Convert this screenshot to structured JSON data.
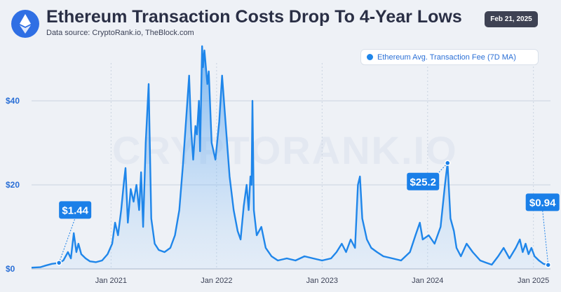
{
  "header": {
    "title": "Ethereum Transaction Costs Drop To 4-Year Lows",
    "subtitle": "Data source: CryptoRank.io, TheBlock.com",
    "date": "Feb 21, 2025",
    "logo_icon": "ethereum-icon",
    "watermark": "CRYPTORANK.IO"
  },
  "colors": {
    "line": "#1f86ea",
    "area": "#a9d2fb",
    "grid": "#c9d3e0",
    "accent": "#1a7fe8"
  },
  "chart_data": {
    "type": "area",
    "x_start": "2020-04-01",
    "series": [
      {
        "name": "Ethereum Avg. Transaction Fee (7D MA)",
        "points": [
          [
            "2020-04-01",
            0.3
          ],
          [
            "2020-05-01",
            0.4
          ],
          [
            "2020-05-20",
            0.8
          ],
          [
            "2020-06-10",
            1.2
          ],
          [
            "2020-07-05",
            1.44
          ],
          [
            "2020-07-20",
            2.0
          ],
          [
            "2020-08-05",
            4.0
          ],
          [
            "2020-08-15",
            2.5
          ],
          [
            "2020-08-25",
            8.5
          ],
          [
            "2020-09-03",
            4.0
          ],
          [
            "2020-09-10",
            6.0
          ],
          [
            "2020-09-20",
            3.5
          ],
          [
            "2020-10-05",
            2.5
          ],
          [
            "2020-10-20",
            1.8
          ],
          [
            "2020-11-10",
            1.6
          ],
          [
            "2020-12-01",
            2.0
          ],
          [
            "2020-12-20",
            3.5
          ],
          [
            "2021-01-05",
            6.0
          ],
          [
            "2021-01-15",
            11.0
          ],
          [
            "2021-01-25",
            8.0
          ],
          [
            "2021-02-05",
            14.0
          ],
          [
            "2021-02-15",
            21.0
          ],
          [
            "2021-02-20",
            24.0
          ],
          [
            "2021-02-28",
            11.0
          ],
          [
            "2021-03-10",
            19.0
          ],
          [
            "2021-03-20",
            16.0
          ],
          [
            "2021-03-30",
            20.0
          ],
          [
            "2021-04-08",
            14.0
          ],
          [
            "2021-04-15",
            23.0
          ],
          [
            "2021-04-22",
            10.0
          ],
          [
            "2021-05-01",
            30.0
          ],
          [
            "2021-05-11",
            44.0
          ],
          [
            "2021-05-20",
            12.0
          ],
          [
            "2021-06-01",
            6.0
          ],
          [
            "2021-06-15",
            4.5
          ],
          [
            "2021-07-05",
            4.0
          ],
          [
            "2021-07-25",
            5.0
          ],
          [
            "2021-08-10",
            8.0
          ],
          [
            "2021-08-25",
            14.0
          ],
          [
            "2021-09-07",
            25.0
          ],
          [
            "2021-09-20",
            38.0
          ],
          [
            "2021-09-28",
            46.0
          ],
          [
            "2021-10-05",
            33.0
          ],
          [
            "2021-10-12",
            26.0
          ],
          [
            "2021-10-20",
            34.0
          ],
          [
            "2021-10-25",
            32.0
          ],
          [
            "2021-11-01",
            40.0
          ],
          [
            "2021-11-05",
            28.0
          ],
          [
            "2021-11-12",
            53.0
          ],
          [
            "2021-11-15",
            48.0
          ],
          [
            "2021-11-20",
            52.0
          ],
          [
            "2021-11-30",
            44.0
          ],
          [
            "2021-12-05",
            47.0
          ],
          [
            "2021-12-15",
            30.0
          ],
          [
            "2021-12-28",
            26.0
          ],
          [
            "2022-01-10",
            35.0
          ],
          [
            "2022-01-20",
            46.0
          ],
          [
            "2022-02-01",
            35.0
          ],
          [
            "2022-02-15",
            22.0
          ],
          [
            "2022-03-01",
            14.0
          ],
          [
            "2022-03-15",
            9.0
          ],
          [
            "2022-03-25",
            7.0
          ],
          [
            "2022-04-05",
            15.0
          ],
          [
            "2022-04-15",
            20.0
          ],
          [
            "2022-04-22",
            14.0
          ],
          [
            "2022-04-28",
            22.0
          ],
          [
            "2022-05-02",
            20.0
          ],
          [
            "2022-05-05",
            40.0
          ],
          [
            "2022-05-10",
            14.0
          ],
          [
            "2022-05-20",
            8.0
          ],
          [
            "2022-06-05",
            10.0
          ],
          [
            "2022-06-20",
            5.0
          ],
          [
            "2022-07-10",
            3.0
          ],
          [
            "2022-08-01",
            2.0
          ],
          [
            "2022-09-01",
            2.5
          ],
          [
            "2022-10-01",
            2.0
          ],
          [
            "2022-11-01",
            3.0
          ],
          [
            "2022-12-01",
            2.5
          ],
          [
            "2023-01-01",
            2.0
          ],
          [
            "2023-02-01",
            2.5
          ],
          [
            "2023-02-20",
            4.0
          ],
          [
            "2023-03-10",
            6.0
          ],
          [
            "2023-03-25",
            4.0
          ],
          [
            "2023-04-10",
            7.0
          ],
          [
            "2023-04-25",
            5.0
          ],
          [
            "2023-05-05",
            20.0
          ],
          [
            "2023-05-12",
            22.0
          ],
          [
            "2023-05-20",
            12.0
          ],
          [
            "2023-06-05",
            7.0
          ],
          [
            "2023-06-20",
            5.0
          ],
          [
            "2023-07-10",
            4.0
          ],
          [
            "2023-08-01",
            3.0
          ],
          [
            "2023-09-01",
            2.5
          ],
          [
            "2023-10-01",
            2.0
          ],
          [
            "2023-11-01",
            4.0
          ],
          [
            "2023-11-20",
            8.0
          ],
          [
            "2023-12-05",
            11.0
          ],
          [
            "2023-12-15",
            7.0
          ],
          [
            "2024-01-05",
            8.0
          ],
          [
            "2024-01-25",
            6.0
          ],
          [
            "2024-02-15",
            10.0
          ],
          [
            "2024-03-01",
            20.0
          ],
          [
            "2024-03-10",
            25.2
          ],
          [
            "2024-03-20",
            12.0
          ],
          [
            "2024-04-01",
            9.0
          ],
          [
            "2024-04-10",
            5.0
          ],
          [
            "2024-04-25",
            3.0
          ],
          [
            "2024-05-15",
            6.0
          ],
          [
            "2024-06-05",
            4.0
          ],
          [
            "2024-07-01",
            2.0
          ],
          [
            "2024-07-20",
            1.5
          ],
          [
            "2024-08-10",
            1.0
          ],
          [
            "2024-09-01",
            3.0
          ],
          [
            "2024-09-20",
            5.0
          ],
          [
            "2024-10-10",
            2.5
          ],
          [
            "2024-11-01",
            5.0
          ],
          [
            "2024-11-15",
            7.0
          ],
          [
            "2024-11-25",
            4.0
          ],
          [
            "2024-12-05",
            6.0
          ],
          [
            "2024-12-15",
            3.5
          ],
          [
            "2024-12-25",
            5.0
          ],
          [
            "2025-01-05",
            3.0
          ],
          [
            "2025-01-20",
            2.0
          ],
          [
            "2025-02-05",
            1.2
          ],
          [
            "2025-02-21",
            0.94
          ]
        ]
      }
    ],
    "yticks": [
      "$0",
      "$20",
      "$40"
    ],
    "ytick_values": [
      0,
      20,
      40
    ],
    "ylim": [
      0,
      54
    ],
    "xticks": [
      "Jan 2021",
      "Jan 2022",
      "Jan 2023",
      "Jan 2024",
      "Jan 2025"
    ],
    "xtick_dates": [
      "2021-01-01",
      "2022-01-01",
      "2023-01-01",
      "2024-01-01",
      "2025-01-01"
    ],
    "xlim": [
      "2020-04-01",
      "2025-03-01"
    ],
    "grid": true,
    "legend_position": "top-right",
    "annotations": [
      {
        "label": "$1.44",
        "date": "2020-07-05",
        "value": 1.44
      },
      {
        "label": "$25.2",
        "date": "2024-03-10",
        "value": 25.2
      },
      {
        "label": "$0.94",
        "date": "2025-02-21",
        "value": 0.94
      }
    ]
  }
}
